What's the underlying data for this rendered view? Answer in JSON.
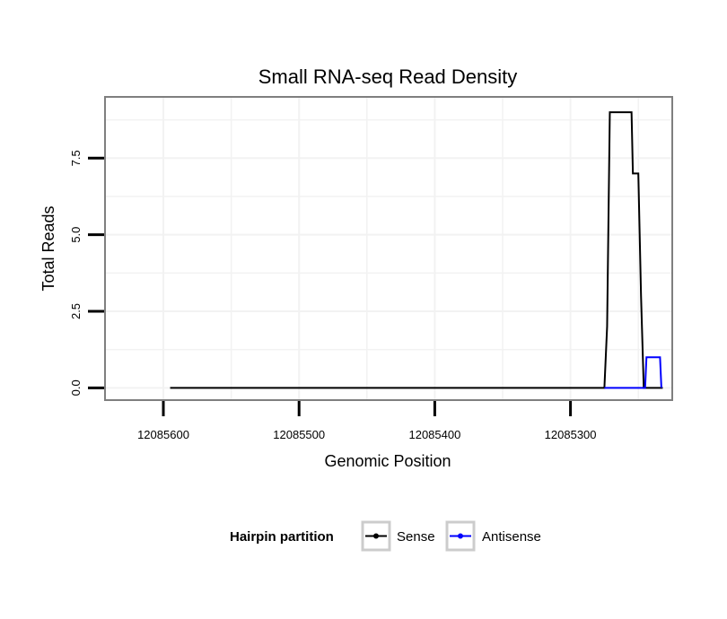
{
  "chart_data": {
    "type": "line",
    "title": "Small RNA-seq Read Density",
    "xlabel": "Genomic Position",
    "ylabel": "Total Reads",
    "x_reversed": true,
    "xlim": [
      12085643,
      12085225
    ],
    "ylim": [
      -0.4,
      9.5
    ],
    "x_ticks": [
      12085600,
      12085500,
      12085400,
      12085300
    ],
    "x_tick_labels": [
      "12085600",
      "12085500",
      "12085400",
      "12085300"
    ],
    "y_ticks": [
      0,
      2.5,
      5,
      7.5
    ],
    "y_tick_labels": [
      "0.0",
      "2.5",
      "5.0",
      "7.5"
    ],
    "grid": true,
    "legend": {
      "title": "Hairpin partition",
      "placement": "bottom",
      "entries": [
        "Sense",
        "Antisense"
      ]
    },
    "series": [
      {
        "name": "Sense",
        "color": "#000000",
        "points": [
          [
            12085595,
            0
          ],
          [
            12085275,
            0
          ],
          [
            12085274,
            1
          ],
          [
            12085273,
            2
          ],
          [
            12085271,
            9
          ],
          [
            12085255,
            9
          ],
          [
            12085254,
            7
          ],
          [
            12085250,
            7
          ],
          [
            12085248,
            3
          ],
          [
            12085246,
            0
          ],
          [
            12085232,
            0
          ]
        ]
      },
      {
        "name": "Antisense",
        "color": "#0000ff",
        "points": [
          [
            12085275,
            0
          ],
          [
            12085245,
            0
          ],
          [
            12085244,
            1
          ],
          [
            12085234,
            1
          ],
          [
            12085233,
            0
          ]
        ]
      }
    ]
  }
}
